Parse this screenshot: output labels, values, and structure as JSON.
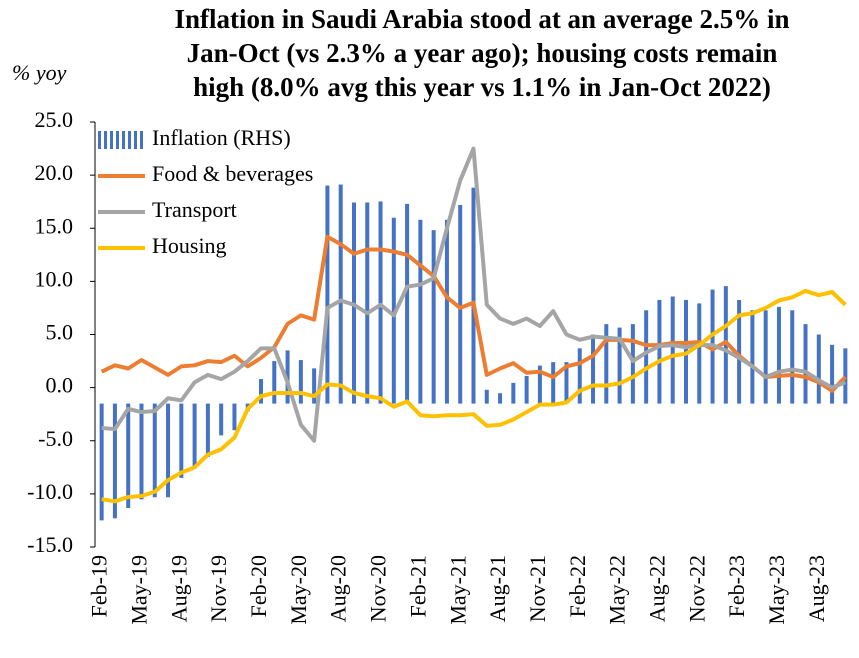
{
  "chart_data": {
    "type": "combo",
    "title": [
      "Inflation in Saudi Arabia stood at an average 2.5% in",
      "Jan-Oct (vs 2.3% a year ago); housing costs remain",
      "high (8.0% avg this year vs 1.1% in Jan-Oct 2022)"
    ],
    "y_label": "% yoy",
    "categories": [
      "Feb-19",
      null,
      null,
      "May-19",
      null,
      null,
      "Aug-19",
      null,
      null,
      "Nov-19",
      null,
      null,
      "Feb-20",
      null,
      null,
      "May-20",
      null,
      null,
      "Aug-20",
      null,
      null,
      "Nov-20",
      null,
      null,
      "Feb-21",
      null,
      null,
      "May-21",
      null,
      null,
      "Aug-21",
      null,
      null,
      "Nov-21",
      null,
      null,
      "Feb-22",
      null,
      null,
      "May-22",
      null,
      null,
      "Aug-22",
      null,
      null,
      "Nov-22",
      null,
      null,
      "Feb-23",
      null,
      null,
      "May-23",
      null,
      null,
      "Aug-23",
      null,
      null
    ],
    "ylim": [
      -15,
      25
    ],
    "yticks": [
      {
        "value": -15,
        "label": "-15.0"
      },
      {
        "value": -10,
        "label": "-10.0"
      },
      {
        "value": -5,
        "label": "-5.0"
      },
      {
        "value": 0,
        "label": "0.0"
      },
      {
        "value": 5,
        "label": "5.0"
      },
      {
        "value": 10,
        "label": "10.0"
      },
      {
        "value": 15,
        "label": "15.0"
      },
      {
        "value": 20,
        "label": "20.0"
      },
      {
        "value": 25,
        "label": "25.0"
      }
    ],
    "y2lim": [
      -4.15,
      8.15
    ],
    "legend": "upper left",
    "series": [
      {
        "name": "Inflation (RHS)",
        "type": "bar",
        "axis": "y2",
        "color": "#4472c4",
        "values": [
          -3.38,
          -3.32,
          -3.02,
          -2.77,
          -2.71,
          -2.71,
          -2.15,
          -1.85,
          -1.54,
          -0.92,
          -0.77,
          -0.22,
          0.71,
          1.23,
          1.54,
          1.26,
          1.02,
          6.31,
          6.34,
          5.82,
          5.82,
          5.85,
          5.38,
          5.78,
          5.32,
          5.02,
          5.32,
          5.75,
          6.25,
          0.4,
          0.3,
          0.6,
          0.8,
          1.1,
          1.2,
          1.2,
          1.6,
          2.0,
          2.3,
          2.2,
          2.3,
          2.7,
          3.0,
          3.1,
          3.0,
          2.9,
          3.3,
          3.4,
          3.0,
          2.7,
          2.7,
          2.8,
          2.7,
          2.3,
          2.0,
          1.7,
          1.6
        ]
      },
      {
        "name": "Food & beverages",
        "type": "line",
        "color": "#ed7d31",
        "values": [
          1.5,
          2.1,
          1.8,
          2.6,
          1.9,
          1.2,
          2.0,
          2.1,
          2.5,
          2.4,
          3.0,
          2.0,
          2.8,
          3.8,
          6.0,
          6.8,
          6.4,
          14.2,
          13.5,
          12.6,
          13.0,
          13.0,
          12.8,
          12.5,
          11.5,
          10.5,
          8.5,
          7.5,
          8.0,
          1.2,
          1.8,
          2.3,
          1.4,
          1.5,
          1.0,
          2.0,
          2.3,
          3.0,
          4.5,
          4.5,
          4.4,
          4.0,
          4.0,
          4.2,
          4.2,
          4.3,
          3.6,
          4.3,
          3.0,
          2.0,
          1.0,
          1.1,
          1.2,
          1.0,
          0.5,
          -0.3,
          1.0
        ]
      },
      {
        "name": "Transport",
        "type": "line",
        "color": "#a5a5a5",
        "values": [
          -3.8,
          -3.9,
          -2.0,
          -2.3,
          -2.2,
          -1.0,
          -1.2,
          0.5,
          1.2,
          0.8,
          1.5,
          2.5,
          3.7,
          3.7,
          0.5,
          -3.5,
          -5.0,
          7.5,
          8.2,
          7.8,
          7.0,
          7.8,
          6.8,
          9.5,
          9.7,
          10.3,
          15.0,
          19.5,
          22.5,
          7.8,
          6.5,
          6.0,
          6.5,
          5.8,
          7.2,
          5.0,
          4.5,
          4.8,
          4.7,
          4.6,
          2.5,
          3.3,
          3.9,
          4.0,
          3.8,
          4.0,
          4.0,
          3.5,
          2.8,
          2.0,
          1.0,
          1.5,
          1.7,
          1.5,
          0.7,
          0.0,
          0.5
        ]
      },
      {
        "name": "Housing",
        "type": "line",
        "color": "#ffc000",
        "values": [
          -10.5,
          -10.7,
          -10.3,
          -10.2,
          -9.8,
          -8.7,
          -8.0,
          -7.5,
          -6.3,
          -5.8,
          -4.7,
          -2.0,
          -0.8,
          -0.5,
          -0.5,
          -0.5,
          -0.8,
          0.3,
          0.2,
          -0.5,
          -0.8,
          -1.0,
          -1.8,
          -1.3,
          -2.6,
          -2.7,
          -2.6,
          -2.6,
          -2.5,
          -3.6,
          -3.5,
          -3.0,
          -2.3,
          -1.6,
          -1.6,
          -1.4,
          -0.3,
          0.2,
          0.2,
          0.4,
          1.0,
          1.8,
          2.5,
          3.0,
          3.2,
          4.0,
          5.0,
          5.8,
          6.8,
          7.0,
          7.5,
          8.2,
          8.5,
          9.1,
          8.7,
          9.0,
          7.8
        ]
      }
    ]
  }
}
